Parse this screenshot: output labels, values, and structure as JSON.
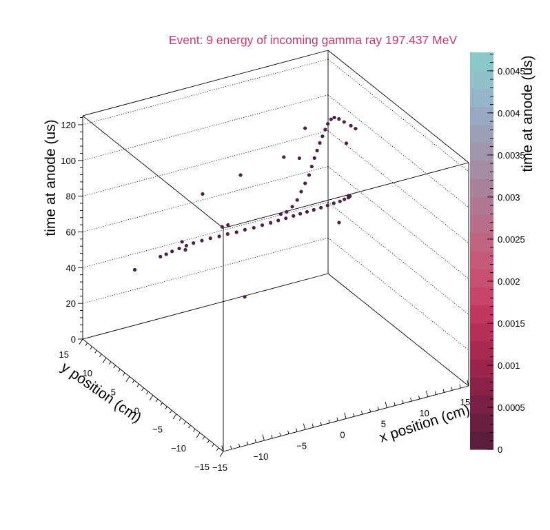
{
  "chart_data": {
    "type": "scatter3d",
    "title": "Event: 9 energy of incoming gamma ray 197.437 MeV",
    "title_color": "#c8386e",
    "xlabel": "x position (cm)",
    "ylabel": "y position (cm)",
    "zlabel": "time at anode (us)",
    "colorbar_label": "time at anode (us)",
    "xlim": [
      -15,
      15
    ],
    "ylim": [
      -15,
      15
    ],
    "zlim": [
      0,
      125
    ],
    "x_ticks": [
      "−15",
      "−10",
      "−5",
      "0",
      "5",
      "10",
      "15"
    ],
    "x_tick_values": [
      -15,
      -10,
      -5,
      0,
      5,
      10,
      15
    ],
    "y_ticks": [
      "15",
      "10",
      "5",
      "0",
      "−5",
      "−10",
      "−15"
    ],
    "y_tick_values": [
      15,
      10,
      5,
      0,
      -5,
      -10,
      -15
    ],
    "z_ticks": [
      "0",
      "20",
      "40",
      "60",
      "80",
      "100",
      "120"
    ],
    "z_tick_values": [
      0,
      20,
      40,
      60,
      80,
      100,
      120
    ],
    "colorbar_ticks": [
      "0",
      "0.0005",
      "0.001",
      "0.0015",
      "0.002",
      "0.0025",
      "0.003",
      "0.0035",
      "0.004",
      "0.0045"
    ],
    "colorbar_tick_values": [
      0,
      0.0005,
      0.001,
      0.0015,
      0.002,
      0.0025,
      0.003,
      0.0035,
      0.004,
      0.0045
    ],
    "colorbar_max": 0.00472,
    "colorbar_colors": [
      "#5a1e3c",
      "#6a1e40",
      "#7a2044",
      "#8a2248",
      "#9a244c",
      "#a82a52",
      "#b43058",
      "#c0385f",
      "#c64468",
      "#c85070",
      "#c65a7a",
      "#c06482",
      "#b86e8a",
      "#b07892",
      "#a8829a",
      "#a48ca2",
      "#a095aa",
      "#9ca0b6",
      "#98aac2",
      "#94b6c8",
      "#90c0c8",
      "#8ac8c8"
    ],
    "grid": true,
    "marker_color": "#4a2240",
    "points": [
      [
        -10.2,
        6.8,
        57.5
      ],
      [
        -9.6,
        6.6,
        58.5
      ],
      [
        -9.0,
        6.4,
        59.8
      ],
      [
        -8.3,
        6.1,
        61.2
      ],
      [
        -7.6,
        5.8,
        62.5
      ],
      [
        -6.9,
        5.5,
        63.8
      ],
      [
        -6.1,
        5.1,
        65.0
      ],
      [
        -5.3,
        4.7,
        66.2
      ],
      [
        -4.5,
        4.2,
        67.3
      ],
      [
        -3.7,
        3.8,
        68.5
      ],
      [
        -2.9,
        3.3,
        69.6
      ],
      [
        -2.1,
        2.9,
        70.8
      ],
      [
        -1.3,
        2.4,
        72.0
      ],
      [
        -0.5,
        2.0,
        73.3
      ],
      [
        0.3,
        1.6,
        74.5
      ],
      [
        1.0,
        1.2,
        75.8
      ],
      [
        1.7,
        0.8,
        77.0
      ],
      [
        2.4,
        0.4,
        78.3
      ],
      [
        3.0,
        0.0,
        79.6
      ],
      [
        3.6,
        -0.4,
        80.8
      ],
      [
        4.2,
        -0.8,
        82.0
      ],
      [
        4.9,
        -1.1,
        83.0
      ],
      [
        5.6,
        -1.3,
        83.8
      ],
      [
        6.3,
        -1.4,
        84.4
      ],
      [
        7.0,
        -1.5,
        84.8
      ],
      [
        7.6,
        -1.4,
        85.0
      ],
      [
        8.2,
        -1.2,
        84.8
      ],
      [
        8.6,
        -0.8,
        84.2
      ],
      [
        8.8,
        -0.4,
        83.4
      ],
      [
        8.9,
        0.0,
        82.5
      ],
      [
        2.6,
        1.0,
        82.0
      ],
      [
        3.2,
        1.0,
        85.0
      ],
      [
        3.8,
        1.2,
        88.5
      ],
      [
        4.4,
        1.4,
        92.0
      ],
      [
        5.0,
        1.6,
        95.5
      ],
      [
        5.5,
        1.9,
        99.0
      ],
      [
        6.0,
        2.2,
        102.5
      ],
      [
        6.5,
        2.5,
        105.5
      ],
      [
        7.0,
        2.8,
        108.5
      ],
      [
        7.5,
        3.1,
        111.0
      ],
      [
        8.0,
        3.4,
        113.5
      ],
      [
        8.5,
        3.7,
        115.5
      ],
      [
        9.0,
        3.9,
        117.0
      ],
      [
        9.4,
        3.9,
        117.5
      ],
      [
        9.8,
        3.6,
        116.8
      ],
      [
        10.2,
        3.2,
        115.5
      ],
      [
        10.8,
        2.8,
        113.5
      ],
      [
        11.2,
        2.5,
        112.0
      ],
      [
        -4.2,
        4.1,
        72.5
      ],
      [
        -3.6,
        3.9,
        73.2
      ],
      [
        1.2,
        1.0,
        79.5
      ],
      [
        1.8,
        0.8,
        80.5
      ],
      [
        -5.5,
        6.0,
        88.5
      ],
      [
        4.5,
        2.8,
        103.0
      ],
      [
        3.0,
        3.5,
        104.0
      ],
      [
        -2.0,
        4.0,
        99.0
      ],
      [
        -6.0,
        9.5,
        55.0
      ],
      [
        -5.6,
        9.5,
        50.0
      ],
      [
        -3.5,
        0.5,
        40.0
      ],
      [
        -11.5,
        10.0,
        45.0
      ],
      [
        6.6,
        -2.0,
        74.5
      ],
      [
        5.6,
        3.5,
        117.0
      ],
      [
        9.5,
        1.5,
        108.0
      ]
    ]
  }
}
